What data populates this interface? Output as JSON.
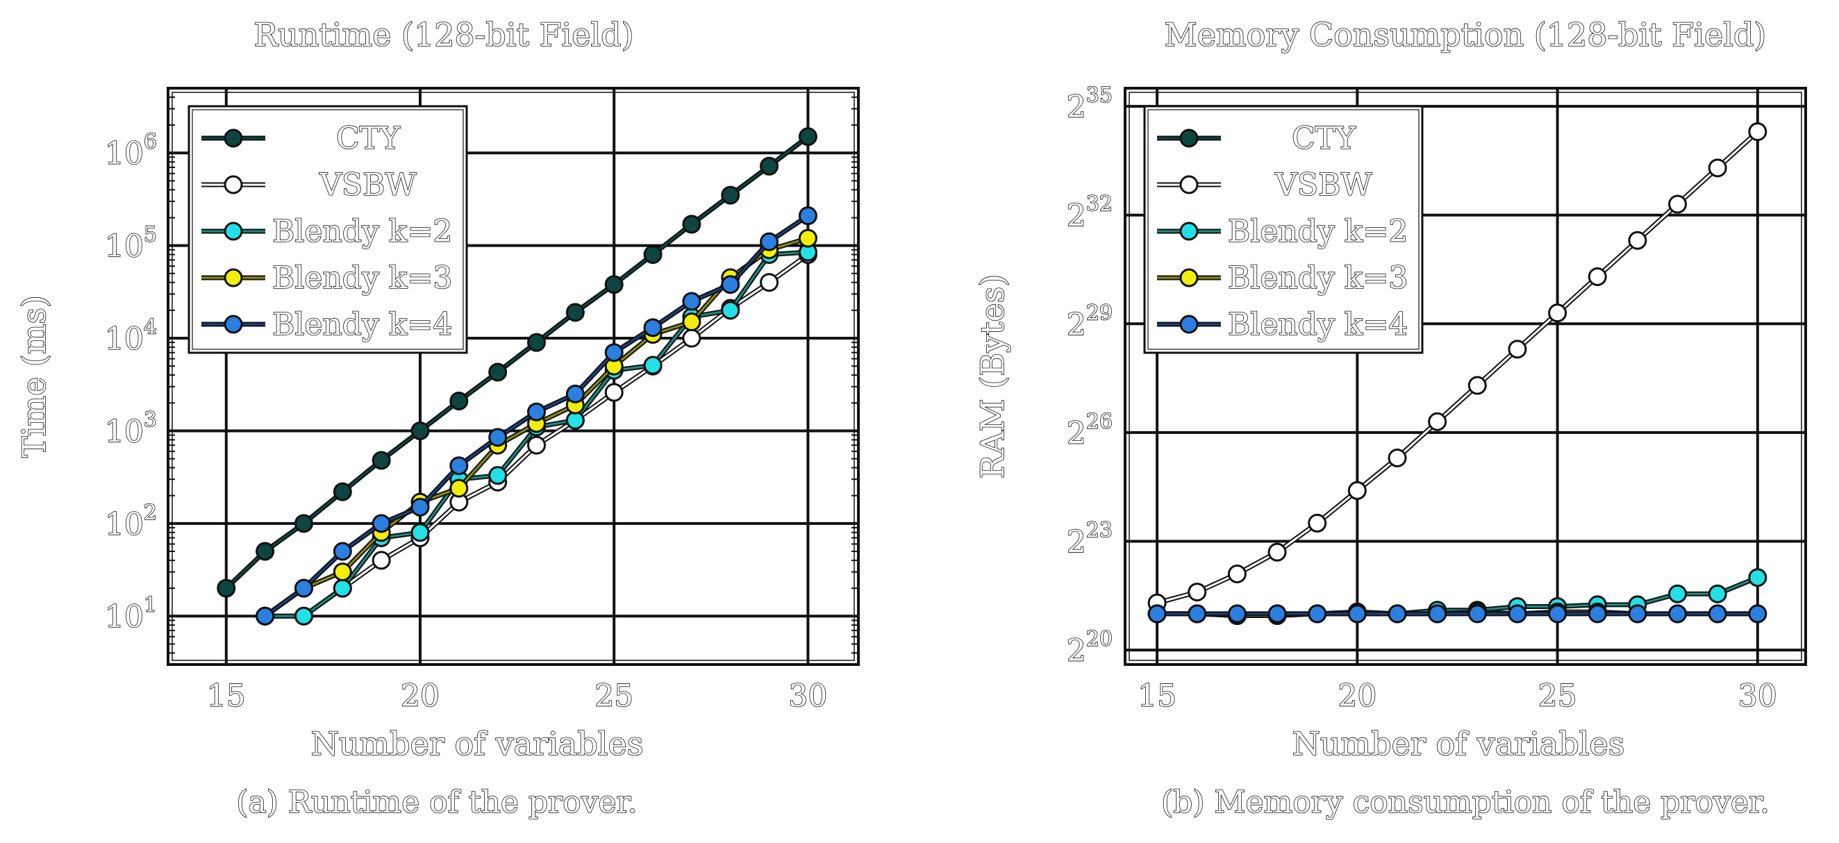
{
  "chart_data": [
    {
      "type": "line",
      "title": "Runtime (128-bit Field)",
      "caption": "(a) Runtime of the prover.",
      "xlabel": "Number of variables",
      "ylabel": "Time (ms)",
      "xlim": [
        13.5,
        31.3
      ],
      "ylim": [
        3,
        5000000
      ],
      "yscale": "log10",
      "xticks": [
        "15",
        "20",
        "25",
        "30"
      ],
      "yticks": [
        {
          "base": "10",
          "exp": "1",
          "value": 10
        },
        {
          "base": "10",
          "exp": "2",
          "value": 100
        },
        {
          "base": "10",
          "exp": "3",
          "value": 1000
        },
        {
          "base": "10",
          "exp": "4",
          "value": 10000
        },
        {
          "base": "10",
          "exp": "5",
          "value": 100000
        },
        {
          "base": "10",
          "exp": "6",
          "value": 1000000
        }
      ],
      "grid": true,
      "legend": "top-left",
      "series": [
        {
          "name": "CTY",
          "color": "#0d4540",
          "fill": "#0d4540",
          "x": [
            15,
            16,
            17,
            18,
            19,
            20,
            21,
            22,
            23,
            24,
            25,
            26,
            27,
            28,
            29,
            30
          ],
          "values": [
            20,
            50,
            100,
            220,
            480,
            1000,
            2100,
            4300,
            9000,
            19000,
            38000,
            80000,
            170000,
            350000,
            720000,
            1500000
          ]
        },
        {
          "name": "VSBW",
          "color": "#666666",
          "fill": "#ffffff",
          "x": [
            16,
            17,
            18,
            19,
            20,
            21,
            22,
            23,
            24,
            25,
            26,
            27,
            28,
            29,
            30
          ],
          "values": [
            10,
            10,
            20,
            40,
            70,
            170,
            280,
            700,
            1300,
            2600,
            5000,
            10000,
            21000,
            40000,
            80000
          ]
        },
        {
          "name": "Blendy k=2",
          "color": "#1a8a80",
          "fill": "#22e0e6",
          "x": [
            16,
            17,
            18,
            19,
            20,
            21,
            22,
            23,
            24,
            25,
            26,
            27,
            28,
            29,
            30
          ],
          "values": [
            10,
            10,
            20,
            70,
            80,
            300,
            330,
            1100,
            1300,
            4500,
            5100,
            17000,
            20000,
            80000,
            85000
          ]
        },
        {
          "name": "Blendy k=3",
          "color": "#8a8a10",
          "fill": "#f2ee0a",
          "x": [
            16,
            17,
            18,
            19,
            20,
            21,
            22,
            23,
            24,
            25,
            26,
            27,
            28,
            29,
            30
          ],
          "values": [
            10,
            20,
            30,
            80,
            170,
            240,
            700,
            1200,
            1900,
            5000,
            11000,
            15000,
            45000,
            90000,
            120000
          ]
        },
        {
          "name": "Blendy k=4",
          "color": "#1a3e7a",
          "fill": "#2a7fe0",
          "x": [
            16,
            17,
            18,
            19,
            20,
            21,
            22,
            23,
            24,
            25,
            26,
            27,
            28,
            29,
            30
          ],
          "values": [
            10,
            20,
            50,
            100,
            150,
            420,
            850,
            1600,
            2500,
            7000,
            13000,
            25000,
            38000,
            110000,
            210000
          ]
        }
      ]
    },
    {
      "type": "line",
      "title": "Memory Consumption (128-bit Field)",
      "caption": "(b) Memory consumption of the prover.",
      "xlabel": "Number of variables",
      "ylabel": "RAM (Bytes)",
      "xlim": [
        14.2,
        31.2
      ],
      "ylim": [
        19.6,
        35.5
      ],
      "yscale": "log2",
      "xticks": [
        "15",
        "20",
        "25",
        "30"
      ],
      "yticks": [
        {
          "base": "2",
          "exp": "20",
          "value": 20
        },
        {
          "base": "2",
          "exp": "23",
          "value": 23
        },
        {
          "base": "2",
          "exp": "26",
          "value": 26
        },
        {
          "base": "2",
          "exp": "29",
          "value": 29
        },
        {
          "base": "2",
          "exp": "32",
          "value": 32
        },
        {
          "base": "2",
          "exp": "35",
          "value": 35
        }
      ],
      "grid": true,
      "legend": "top-left",
      "series": [
        {
          "name": "CTY",
          "color": "#0d4540",
          "fill": "#0d4540",
          "x": [],
          "values": []
        },
        {
          "name": "VSBW",
          "color": "#666666",
          "fill": "#ffffff",
          "x": [
            15,
            16,
            17,
            18,
            19,
            20,
            21,
            22,
            23,
            24,
            25,
            26,
            27,
            28,
            29,
            30
          ],
          "values": [
            21.3,
            21.6,
            22.1,
            22.7,
            23.5,
            24.4,
            25.3,
            26.3,
            27.3,
            28.3,
            29.3,
            30.3,
            31.3,
            32.3,
            33.3,
            34.3
          ]
        },
        {
          "name": "Blendy k=2",
          "color": "#1a8a80",
          "fill": "#22e0e6",
          "x": [
            15,
            16,
            17,
            18,
            19,
            20,
            21,
            22,
            23,
            24,
            25,
            26,
            27,
            28,
            29,
            30
          ],
          "values": [
            21.0,
            21.0,
            20.95,
            21.0,
            21.0,
            21.05,
            21.0,
            21.1,
            21.1,
            21.2,
            21.2,
            21.25,
            21.25,
            21.55,
            21.55,
            22.0
          ]
        },
        {
          "name": "Blendy k=3",
          "color": "#8a8a10",
          "fill": "#f2ee0a",
          "x": [
            15,
            16,
            17,
            18,
            19,
            20,
            21,
            22,
            23,
            24,
            25,
            26,
            27,
            28,
            29,
            30
          ],
          "values": [
            21.0,
            21.0,
            20.95,
            20.95,
            21.0,
            21.0,
            21.0,
            21.0,
            21.05,
            21.0,
            21.05,
            21.05,
            21.0,
            21.0,
            21.0,
            21.0
          ]
        },
        {
          "name": "Blendy k=4",
          "color": "#1a3e7a",
          "fill": "#2a7fe0",
          "x": [
            15,
            16,
            17,
            18,
            19,
            20,
            21,
            22,
            23,
            24,
            25,
            26,
            27,
            28,
            29,
            30
          ],
          "values": [
            21.0,
            21.0,
            21.0,
            21.0,
            21.0,
            21.0,
            21.0,
            21.0,
            21.0,
            21.0,
            21.0,
            21.0,
            21.0,
            21.0,
            21.0,
            21.0
          ]
        }
      ]
    }
  ]
}
